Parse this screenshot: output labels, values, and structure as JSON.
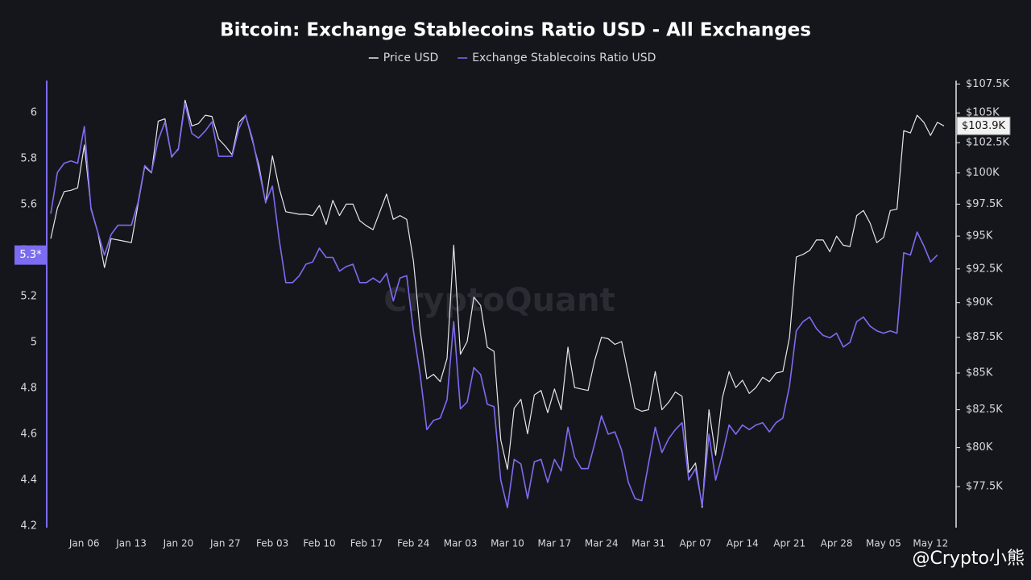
{
  "chart_data": {
    "type": "line",
    "title": "Bitcoin: Exchange Stablecoins Ratio USD - All Exchanges",
    "watermark": "CryptoQuant",
    "credit": "@Crypto小熊",
    "categories": [
      null,
      null,
      null,
      null,
      null,
      "Jan 06",
      null,
      null,
      null,
      null,
      null,
      null,
      "Jan 13",
      null,
      null,
      null,
      null,
      null,
      null,
      "Jan 20",
      null,
      null,
      null,
      null,
      null,
      null,
      "Jan 27",
      null,
      null,
      null,
      null,
      null,
      null,
      "Feb 03",
      null,
      null,
      null,
      null,
      null,
      null,
      "Feb 10",
      null,
      null,
      null,
      null,
      null,
      null,
      "Feb 17",
      null,
      null,
      null,
      null,
      null,
      null,
      "Feb 24",
      null,
      null,
      null,
      null,
      null,
      null,
      "Mar 03",
      null,
      null,
      null,
      null,
      null,
      null,
      "Mar 10",
      null,
      null,
      null,
      null,
      null,
      null,
      "Mar 17",
      null,
      null,
      null,
      null,
      null,
      null,
      "Mar 24",
      null,
      null,
      null,
      null,
      null,
      null,
      "Mar 31",
      null,
      null,
      null,
      null,
      null,
      null,
      "Apr 07",
      null,
      null,
      null,
      null,
      null,
      null,
      "Apr 14",
      null,
      null,
      null,
      null,
      null,
      null,
      "Apr 21",
      null,
      null,
      null,
      null,
      null,
      null,
      "Apr 28",
      null,
      null,
      null,
      null,
      null,
      null,
      "May 05",
      null,
      null,
      null,
      null,
      null,
      null,
      "May 12",
      null,
      null
    ],
    "series": [
      {
        "name": "Price USD",
        "color": "#e6e6ea",
        "axis": "y2",
        "last_label": "$103.9K",
        "values": [
          94800,
          97200,
          98500,
          98600,
          98800,
          102300,
          97200,
          95300,
          92600,
          94800,
          94700,
          94600,
          94500,
          97500,
          100500,
          100000,
          104300,
          104500,
          101300,
          102000,
          106100,
          103900,
          104100,
          104800,
          104700,
          102800,
          102200,
          101500,
          104200,
          104800,
          102700,
          100600,
          97600,
          101400,
          98800,
          96900,
          96800,
          96700,
          96700,
          96600,
          97400,
          95900,
          97800,
          96600,
          97500,
          97500,
          96200,
          95800,
          95500,
          96900,
          98300,
          96300,
          96600,
          96300,
          93100,
          88000,
          84600,
          84900,
          84400,
          86000,
          94300,
          86300,
          87200,
          90400,
          89800,
          86800,
          86500,
          80500,
          78600,
          82600,
          83200,
          80900,
          83500,
          83800,
          82300,
          83900,
          82500,
          86800,
          84000,
          83900,
          83800,
          85900,
          87500,
          87400,
          87000,
          87200,
          84900,
          82600,
          82400,
          82500,
          85100,
          82500,
          83000,
          83700,
          83400,
          78400,
          79000,
          76200,
          82500,
          79500,
          83300,
          85100,
          84000,
          84500,
          83600,
          84000,
          84700,
          84400,
          85000,
          85100,
          87500,
          93400,
          93600,
          93900,
          94700,
          94700,
          93800,
          95000,
          94300,
          94200,
          96600,
          97000,
          96000,
          94500,
          94900,
          97000,
          97100,
          103500,
          103300,
          104800,
          104200,
          103100,
          104200,
          103900
        ]
      },
      {
        "name": "Exchange Stablecoins Ratio USD",
        "color": "#7b6cf0",
        "last_label": "5.3*",
        "values": [
          5.56,
          5.74,
          5.78,
          5.79,
          5.78,
          5.94,
          5.58,
          5.48,
          5.38,
          5.47,
          5.51,
          5.51,
          5.51,
          5.61,
          5.77,
          5.74,
          5.88,
          5.96,
          5.81,
          5.84,
          6.04,
          5.91,
          5.89,
          5.92,
          5.96,
          5.81,
          5.81,
          5.81,
          5.93,
          5.99,
          5.89,
          5.75,
          5.61,
          5.68,
          5.45,
          5.26,
          5.26,
          5.29,
          5.34,
          5.35,
          5.41,
          5.37,
          5.37,
          5.31,
          5.33,
          5.34,
          5.26,
          5.26,
          5.28,
          5.26,
          5.3,
          5.18,
          5.28,
          5.29,
          5.05,
          4.86,
          4.62,
          4.66,
          4.67,
          4.75,
          5.09,
          4.71,
          4.74,
          4.89,
          4.86,
          4.73,
          4.72,
          4.4,
          4.28,
          4.49,
          4.47,
          4.32,
          4.48,
          4.49,
          4.39,
          4.49,
          4.44,
          4.63,
          4.5,
          4.45,
          4.45,
          4.56,
          4.68,
          4.6,
          4.61,
          4.53,
          4.39,
          4.32,
          4.31,
          4.47,
          4.63,
          4.52,
          4.58,
          4.62,
          4.65,
          4.4,
          4.45,
          4.29,
          4.6,
          4.4,
          4.51,
          4.64,
          4.6,
          4.64,
          4.62,
          4.64,
          4.65,
          4.61,
          4.65,
          4.67,
          4.81,
          5.05,
          5.09,
          5.11,
          5.06,
          5.03,
          5.02,
          5.04,
          4.98,
          5,
          5.09,
          5.11,
          5.07,
          5.05,
          5.04,
          5.05,
          5.04,
          5.39,
          5.38,
          5.48,
          5.42,
          5.35,
          5.38,
          null
        ]
      }
    ],
    "ylim": [
      4.2,
      6.14
    ],
    "yticks": [
      4.2,
      4.4,
      4.6,
      4.8,
      5,
      5.2,
      5.4,
      5.6,
      5.8,
      6
    ],
    "y2lim": [
      75060,
      107800
    ],
    "y2log": true,
    "y2ticks": [
      {
        "value": 77500,
        "label": "$77.5K"
      },
      {
        "value": 80000,
        "label": "$80K"
      },
      {
        "value": 82500,
        "label": "$82.5K"
      },
      {
        "value": 85000,
        "label": "$85K"
      },
      {
        "value": 87500,
        "label": "$87.5K"
      },
      {
        "value": 90000,
        "label": "$90K"
      },
      {
        "value": 92500,
        "label": "$92.5K"
      },
      {
        "value": 95000,
        "label": "$95K"
      },
      {
        "value": 97500,
        "label": "$97.5K"
      },
      {
        "value": 100000,
        "label": "$100K"
      },
      {
        "value": 102500,
        "label": "$102.5K"
      },
      {
        "value": 105000,
        "label": "$105K"
      },
      {
        "value": 107500,
        "label": "$107.5K"
      }
    ],
    "grid": false,
    "legend": "top"
  }
}
